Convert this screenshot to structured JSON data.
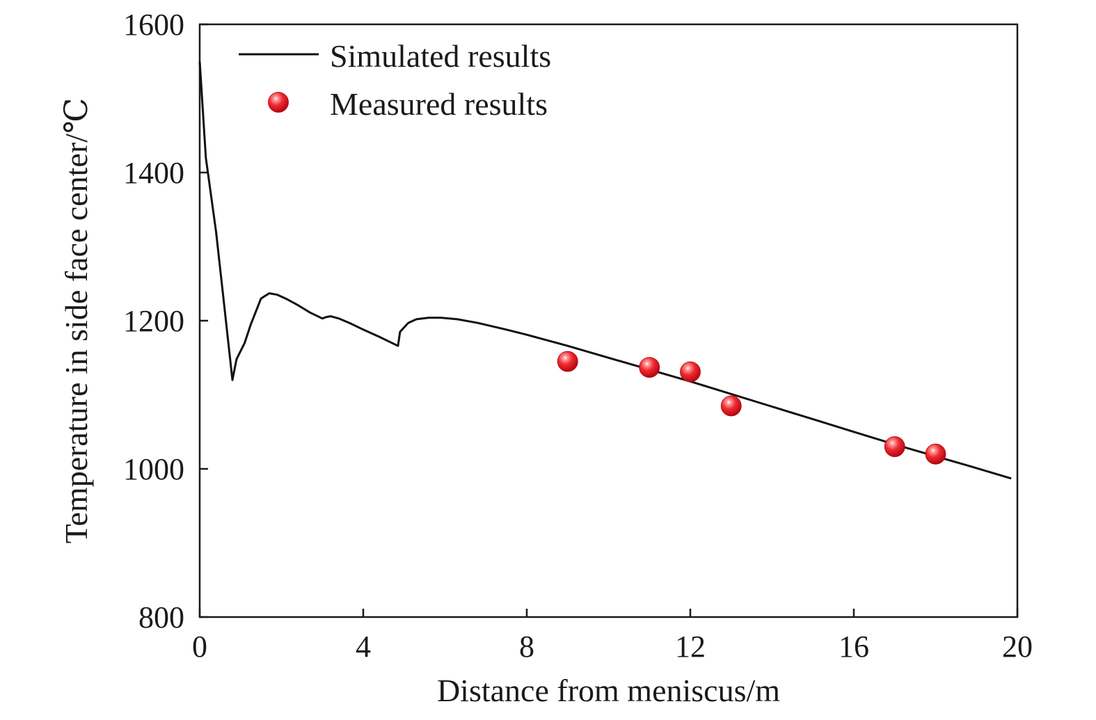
{
  "chart_data": {
    "type": "line",
    "title": "",
    "xlabel": "Distance from meniscus/m",
    "ylabel": "Temperature in side face center/℃",
    "xlim": [
      0,
      20
    ],
    "ylim": [
      800,
      1600
    ],
    "x_ticks": [
      0,
      4,
      8,
      12,
      16,
      20
    ],
    "y_ticks": [
      800,
      1000,
      1200,
      1400,
      1600
    ],
    "grid": false,
    "legend_position": "top-left",
    "series": [
      {
        "name": "Simulated results",
        "kind": "line",
        "color": "#111111",
        "x": [
          0,
          0.15,
          0.4,
          0.6,
          0.8,
          0.9,
          1.1,
          1.25,
          1.5,
          1.7,
          1.9,
          2.1,
          2.4,
          2.7,
          3.0,
          3.1,
          3.2,
          3.4,
          3.7,
          4.0,
          4.4,
          4.85,
          4.9,
          5.1,
          5.3,
          5.6,
          5.9,
          6.3,
          6.8,
          7.5,
          8.0,
          9.0,
          10.0,
          11.0,
          12.0,
          13.0,
          14.0,
          15.0,
          16.0,
          17.0,
          18.0,
          19.0,
          19.85
        ],
        "y": [
          1550,
          1420,
          1320,
          1220,
          1120,
          1148,
          1170,
          1195,
          1230,
          1237,
          1235,
          1230,
          1221,
          1211,
          1203,
          1205,
          1206,
          1203,
          1196,
          1188,
          1178,
          1166,
          1185,
          1197,
          1202,
          1204,
          1204,
          1202,
          1197,
          1188,
          1181,
          1166,
          1150,
          1134,
          1118,
          1101,
          1084,
          1067,
          1050,
          1033,
          1017,
          1001,
          987
        ]
      },
      {
        "name": "Measured results",
        "kind": "scatter",
        "color": "#e8202a",
        "x": [
          9,
          11,
          12,
          13,
          17,
          18
        ],
        "y": [
          1145,
          1137,
          1131,
          1085,
          1030,
          1020
        ]
      }
    ]
  }
}
